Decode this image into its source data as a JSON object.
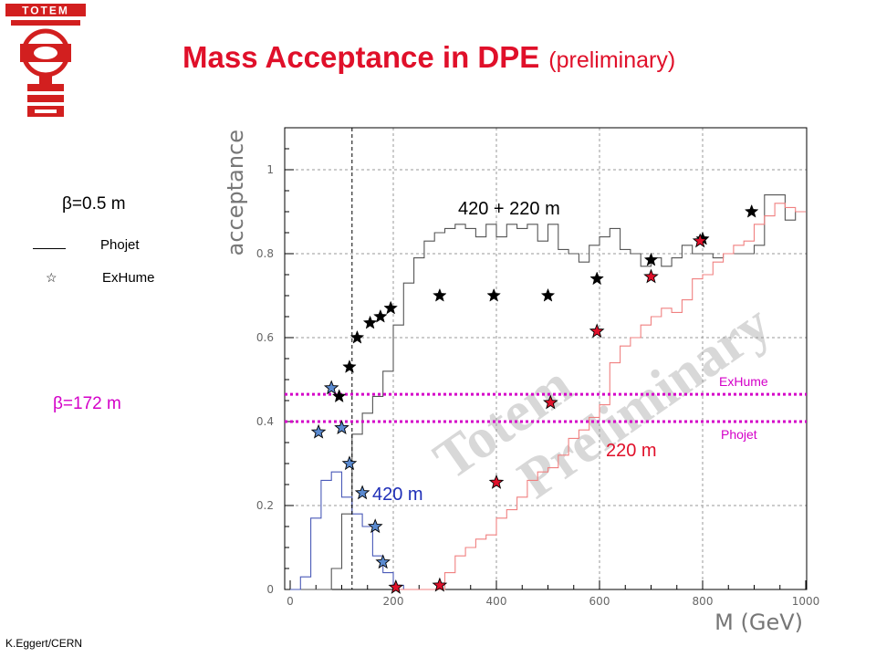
{
  "logo": {
    "text": "TOTEM",
    "color": "#d21f1f"
  },
  "title": {
    "main": "Mass Acceptance in DPE",
    "sub": "(preliminary)",
    "color": "#e0102a"
  },
  "left_panel": {
    "beta_small": "β=0.5 m",
    "beta_large": "β=172 m",
    "legend_phojet": "Phojet",
    "legend_exhume": "ExHume",
    "star_glyph": "☆"
  },
  "footer": "K.Eggert/CERN",
  "chart_data": {
    "type": "line",
    "xlabel": "M (GeV)",
    "ylabel": "acceptance",
    "xlim": [
      0,
      1000
    ],
    "ylim": [
      0,
      1.1
    ],
    "xticks": [
      "0",
      "200",
      "400",
      "600",
      "800",
      "1000"
    ],
    "yticks": [
      "0",
      "0.2",
      "0.4",
      "0.6",
      "0.8",
      "1"
    ],
    "grid": true,
    "watermark": [
      "Totem",
      "Preliminary"
    ],
    "series": [
      {
        "name": "420 + 220 m",
        "kind": "histogram",
        "color": "#555555",
        "x": [
          0,
          20,
          40,
          60,
          80,
          100,
          120,
          140,
          160,
          180,
          200,
          220,
          240,
          260,
          280,
          300,
          320,
          340,
          360,
          380,
          400,
          420,
          440,
          460,
          480,
          500,
          520,
          540,
          560,
          580,
          600,
          620,
          640,
          660,
          680,
          700,
          720,
          740,
          760,
          780,
          800,
          820,
          840,
          860,
          880,
          900,
          920,
          940,
          960,
          980
        ],
        "y": [
          0,
          0,
          0,
          0,
          0.05,
          0.18,
          0.37,
          0.42,
          0.46,
          0.52,
          0.63,
          0.73,
          0.79,
          0.83,
          0.85,
          0.86,
          0.87,
          0.86,
          0.84,
          0.87,
          0.84,
          0.87,
          0.86,
          0.87,
          0.83,
          0.87,
          0.81,
          0.8,
          0.78,
          0.82,
          0.84,
          0.86,
          0.81,
          0.8,
          0.77,
          0.79,
          0.77,
          0.79,
          0.82,
          0.8,
          0.8,
          0.79,
          0.8,
          0.8,
          0.8,
          0.82,
          0.94,
          0.94,
          0.88,
          0.9
        ]
      },
      {
        "name": "420 m",
        "kind": "histogram",
        "color": "#4a5ab8",
        "x": [
          0,
          20,
          40,
          60,
          80,
          100,
          120,
          140,
          160,
          180,
          200,
          220
        ],
        "y": [
          0,
          0.03,
          0.17,
          0.26,
          0.28,
          0.22,
          0.18,
          0.15,
          0.08,
          0.04,
          0.01,
          0
        ]
      },
      {
        "name": "220 m",
        "kind": "histogram",
        "color": "#f08080",
        "x": [
          200,
          220,
          240,
          260,
          280,
          300,
          320,
          340,
          360,
          380,
          400,
          420,
          440,
          460,
          480,
          500,
          520,
          540,
          560,
          580,
          600,
          620,
          640,
          660,
          680,
          700,
          720,
          740,
          760,
          780,
          800,
          820,
          840,
          860,
          880,
          900,
          920,
          940,
          960,
          980
        ],
        "y": [
          0,
          0,
          0,
          0,
          0,
          0.04,
          0.08,
          0.1,
          0.12,
          0.13,
          0.17,
          0.19,
          0.22,
          0.26,
          0.28,
          0.29,
          0.32,
          0.36,
          0.38,
          0.41,
          0.44,
          0.54,
          0.58,
          0.6,
          0.63,
          0.65,
          0.67,
          0.66,
          0.69,
          0.74,
          0.75,
          0.78,
          0.8,
          0.82,
          0.83,
          0.87,
          0.89,
          0.92,
          0.91,
          0.9
        ]
      }
    ],
    "markers": [
      {
        "name": "ExHume 420 + 220 m",
        "color": "#000000",
        "x": [
          95,
          115,
          130,
          155,
          175,
          195,
          290,
          395,
          500,
          595,
          700,
          800,
          895
        ],
        "y": [
          0.46,
          0.53,
          0.6,
          0.635,
          0.65,
          0.67,
          0.7,
          0.7,
          0.7,
          0.74,
          0.785,
          0.835,
          0.9
        ]
      },
      {
        "name": "ExHume 420 m",
        "color": "#5a8ad0",
        "x": [
          55,
          80,
          100,
          115,
          140,
          165,
          180
        ],
        "y": [
          0.375,
          0.48,
          0.385,
          0.3,
          0.23,
          0.15,
          0.065
        ]
      },
      {
        "name": "ExHume 220 m",
        "color": "#e0102a",
        "x": [
          205,
          290,
          400,
          505,
          595,
          700,
          795
        ],
        "y": [
          0.005,
          0.01,
          0.255,
          0.445,
          0.615,
          0.745,
          0.83
        ]
      }
    ],
    "vline_x": 120,
    "hlines": [
      {
        "label": "ExHume",
        "y": 0.465,
        "color": "#d400c8"
      },
      {
        "label": "Phojet",
        "y": 0.4,
        "color": "#d400c8"
      }
    ],
    "series_labels": [
      {
        "text": "420 + 220 m",
        "color": "#000000"
      },
      {
        "text": "420 m",
        "color": "#1f2fb8"
      },
      {
        "text": "220 m",
        "color": "#e0102a"
      }
    ]
  }
}
